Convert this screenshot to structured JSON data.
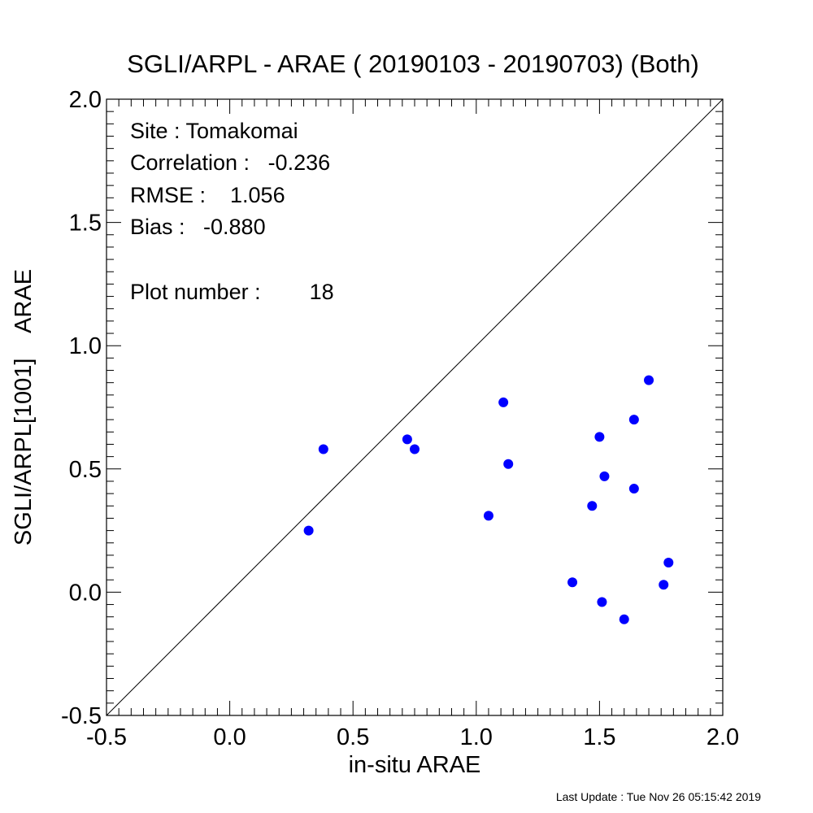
{
  "chart_data": {
    "type": "scatter",
    "title": "SGLI/ARPL - ARAE ( 20190103 - 20190703) (Both)",
    "xlabel": "in-situ ARAE",
    "ylabel": "SGLI/ARPL[1001]    ARAE",
    "xlim": [
      -0.5,
      2.0
    ],
    "ylim": [
      -0.5,
      2.0
    ],
    "x_ticks": [
      -0.5,
      0.0,
      0.5,
      1.0,
      1.5,
      2.0
    ],
    "y_ticks": [
      -0.5,
      0.0,
      0.5,
      1.0,
      1.5,
      2.0
    ],
    "x_tick_labels": [
      "-0.5",
      "0.0",
      "0.5",
      "1.0",
      "1.5",
      "2.0"
    ],
    "y_tick_labels": [
      "-0.5",
      "0.0",
      "0.5",
      "1.0",
      "1.5",
      "2.0"
    ],
    "reference_line": "1:1",
    "grid": false,
    "marker_color": "#0000ff",
    "points": [
      {
        "x": 0.32,
        "y": 0.25
      },
      {
        "x": 0.38,
        "y": 0.58
      },
      {
        "x": 0.72,
        "y": 0.62
      },
      {
        "x": 0.75,
        "y": 0.58
      },
      {
        "x": 1.05,
        "y": 0.31
      },
      {
        "x": 1.11,
        "y": 0.77
      },
      {
        "x": 1.13,
        "y": 0.52
      },
      {
        "x": 1.39,
        "y": 0.04
      },
      {
        "x": 1.47,
        "y": 0.35
      },
      {
        "x": 1.5,
        "y": 0.63
      },
      {
        "x": 1.51,
        "y": -0.04
      },
      {
        "x": 1.52,
        "y": 0.47
      },
      {
        "x": 1.6,
        "y": -0.11
      },
      {
        "x": 1.64,
        "y": 0.42
      },
      {
        "x": 1.64,
        "y": 0.7
      },
      {
        "x": 1.7,
        "y": 0.86
      },
      {
        "x": 1.76,
        "y": 0.03
      },
      {
        "x": 1.78,
        "y": 0.12
      }
    ],
    "annotations": {
      "site": "Site : Tomakomai",
      "correlation": "Correlation :   -0.236",
      "rmse": "RMSE :    1.056",
      "bias": "Bias :   -0.880",
      "plot_number": "Plot number :        18"
    }
  },
  "footer": {
    "last_update": "Last Update : Tue Nov 26 05:15:42 2019"
  }
}
